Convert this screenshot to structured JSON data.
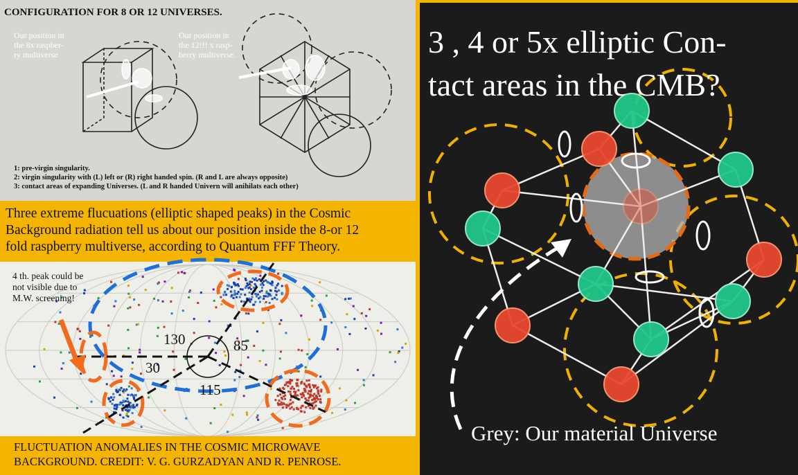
{
  "diagram_panel": {
    "title": "CONFIGURATION FOR 8 OR 12 UNIVERSES.",
    "note_left": [
      "Our position in",
      "the 8x raspber-",
      "ry multiverse"
    ],
    "note_right": [
      "Our position in",
      "the 12!!! x rasp-",
      "berry multiverse."
    ],
    "legend": [
      "1: pre-virgin singularity.",
      "2: virgin singularity with (L) left or (R) right handed spin. (R and L are always opposite)",
      "3: contact areas of expanding Universes. (L and R handed Univern will anihilats each other)"
    ]
  },
  "caption": [
    "Three extreme flucuations (elliptic shaped peaks) in the Cosmic",
    "Background radiation tell us about our position inside the 8-or 12",
    "fold raspberry multiverse, according to Quantum FFF Theory."
  ],
  "sky_map": {
    "note": [
      "4 th. peak could be",
      "not visible due to",
      "M.W. screening!"
    ],
    "angles": [
      "130",
      "85",
      "30",
      "115"
    ]
  },
  "credit": [
    "FLUCTUATION ANOMALIES IN THE COSMIC MICROWAVE",
    "BACKGROUND. CREDIT: V. G. GURZADYAN AND R. PENROSE."
  ],
  "right_panel": {
    "title": [
      "3 , 4 or 5x elliptic Con-",
      "tact areas in the CMB?"
    ],
    "footer": "Grey: Our material Universe"
  }
}
